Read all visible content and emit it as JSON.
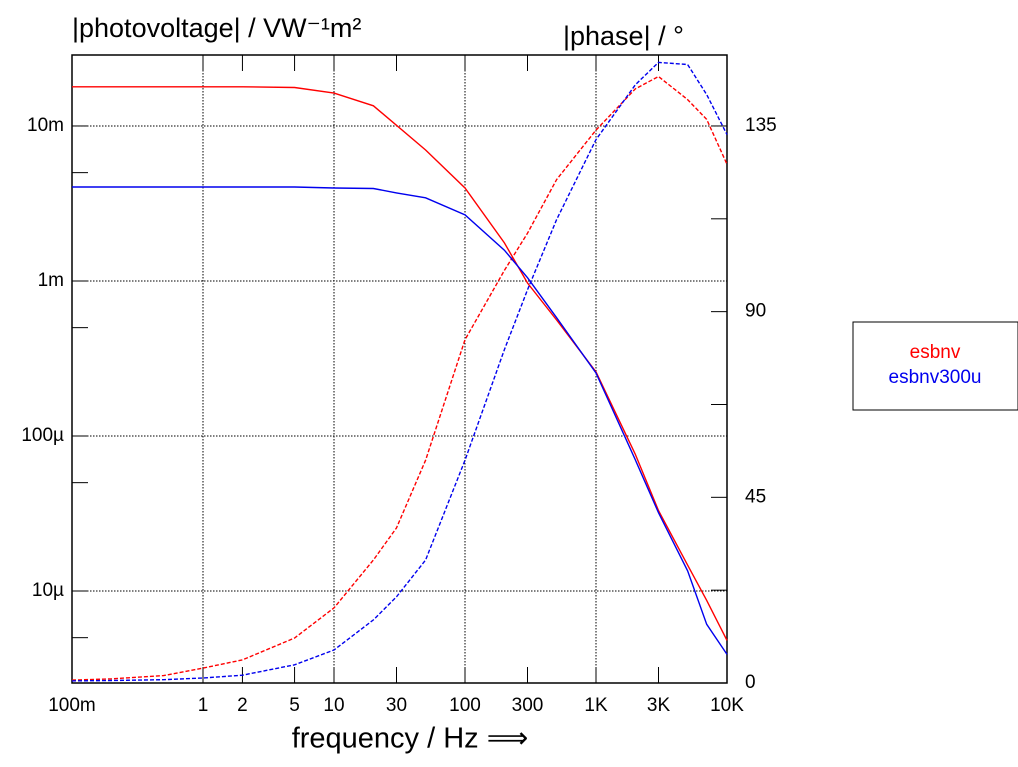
{
  "chart_data": {
    "type": "line",
    "ylabel": "|photovoltage| / VW⁻¹m²",
    "y2label": "|phase| / °",
    "xlabel": "frequency / Hz ⟹",
    "x": [
      0.1,
      0.2,
      0.5,
      1,
      2,
      5,
      10,
      20,
      30,
      50,
      100,
      200,
      300,
      500,
      1000,
      2000,
      3000,
      5000,
      7000,
      10000
    ],
    "series": [
      {
        "name": "esbnv",
        "color": "#ff0000",
        "values": [
          0.0179,
          0.0179,
          0.0179,
          0.0179,
          0.0179,
          0.0177,
          0.0163,
          0.0135,
          0.0101,
          0.007,
          0.00398,
          0.00176,
          0.00097,
          0.00056,
          0.000259,
          7.6e-05,
          3.3e-05,
          1.47e-05,
          8.7e-06,
          4.8e-06
        ],
        "phase": [
          0.7,
          1.0,
          1.8,
          3.6,
          5.6,
          10.9,
          18.2,
          29.8,
          37.6,
          54,
          83.2,
          100,
          109,
          122,
          134,
          144,
          147,
          141.4,
          136.6,
          125.7
        ]
      },
      {
        "name": "esbnv300u",
        "color": "#0000ee",
        "values": [
          0.00404,
          0.00404,
          0.00404,
          0.00404,
          0.00404,
          0.00404,
          0.00398,
          0.00395,
          0.0037,
          0.00344,
          0.00267,
          0.00158,
          0.00105,
          0.00058,
          0.000255,
          7e-05,
          3.2e-05,
          1.35e-05,
          6.1e-06,
          3.9e-06
        ],
        "phase": [
          0.5,
          0.6,
          0.8,
          1.2,
          1.9,
          4.4,
          8,
          15.3,
          20.9,
          29.8,
          54,
          80.8,
          95.3,
          112.3,
          131.7,
          145,
          150.4,
          149.9,
          142.6,
          132.9
        ]
      }
    ],
    "xlim": [
      0.1,
      10000
    ],
    "xscale": "log",
    "xticks": [
      {
        "value": 0.1,
        "label": "100m"
      },
      1,
      2,
      5,
      10,
      30,
      100,
      300,
      {
        "value": 1000,
        "label": "1K"
      },
      {
        "value": 3000,
        "label": "3K"
      },
      {
        "value": 10000,
        "label": "10K"
      }
    ],
    "ylim": [
      2.55e-06,
      0.0287
    ],
    "yscale": "log",
    "yticks": [
      {
        "value": 0.01,
        "label": "10m"
      },
      {
        "value": 0.001,
        "label": "1m"
      },
      {
        "value": 0.0001,
        "label": "100µ"
      },
      {
        "value": 1e-05,
        "label": "10µ"
      }
    ],
    "yminor": [
      0.005,
      0.0005,
      5e-05,
      5e-06
    ],
    "y2lim": [
      0,
      152.2
    ],
    "y2ticks": [
      0,
      45,
      90,
      135
    ],
    "y2minor": [
      22.5,
      67.5,
      112.5
    ],
    "grid": true
  }
}
